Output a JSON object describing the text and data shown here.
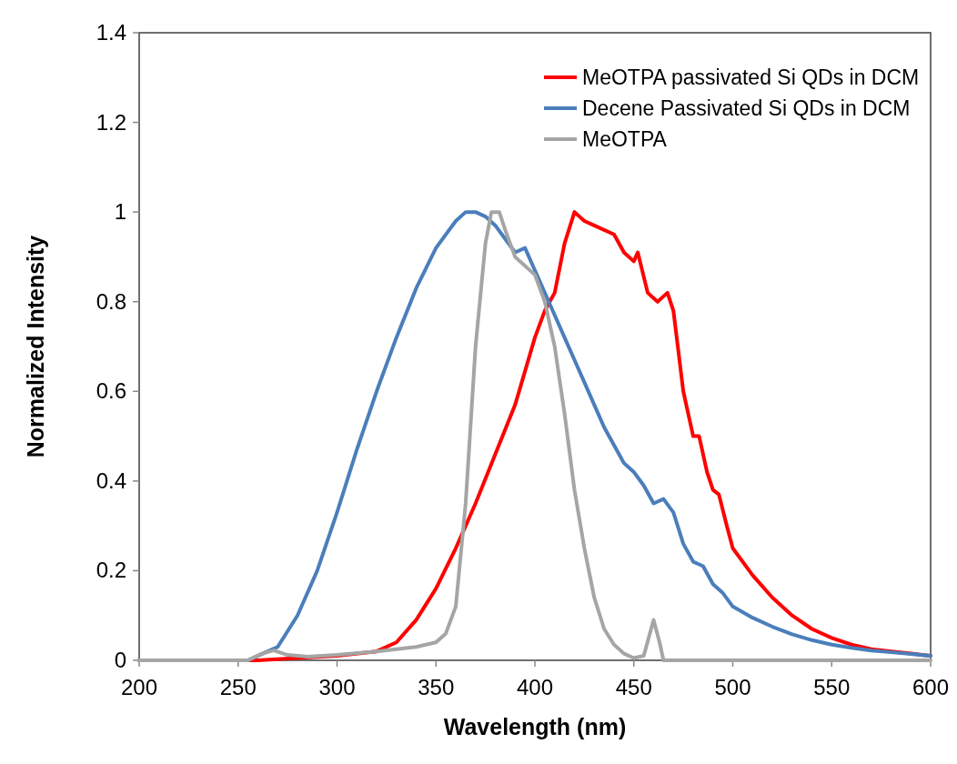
{
  "chart_data": {
    "type": "line",
    "xlabel": "Wavelength (nm)",
    "ylabel": "Normalized Intensity",
    "xlim": [
      200,
      600
    ],
    "ylim": [
      0,
      1.4
    ],
    "xticks": [
      200,
      250,
      300,
      350,
      400,
      450,
      500,
      550,
      600
    ],
    "yticks": [
      0,
      0.2,
      0.4,
      0.6,
      0.8,
      1,
      1.2,
      1.4
    ],
    "grid": false,
    "legend": "top right",
    "line_style": "solid",
    "series": [
      {
        "name": "MeOTPA passivated Si QDs in DCM",
        "color": "#ff0000",
        "x": [
          200,
          260,
          300,
          320,
          330,
          340,
          350,
          360,
          370,
          380,
          390,
          400,
          405,
          410,
          415,
          420,
          425,
          430,
          440,
          445,
          450,
          452,
          457,
          462,
          467,
          470,
          475,
          480,
          483,
          487,
          490,
          493,
          497,
          500,
          510,
          520,
          530,
          540,
          550,
          560,
          570,
          580,
          590,
          600
        ],
        "values": [
          0,
          0,
          0.01,
          0.02,
          0.04,
          0.09,
          0.16,
          0.25,
          0.35,
          0.46,
          0.57,
          0.72,
          0.78,
          0.82,
          0.93,
          1.0,
          0.98,
          0.97,
          0.95,
          0.91,
          0.89,
          0.91,
          0.82,
          0.8,
          0.82,
          0.78,
          0.6,
          0.5,
          0.5,
          0.42,
          0.38,
          0.37,
          0.3,
          0.25,
          0.19,
          0.14,
          0.1,
          0.07,
          0.05,
          0.035,
          0.025,
          0.02,
          0.015,
          0.01
        ]
      },
      {
        "name": "Decene Passivated Si QDs in DCM",
        "color": "#4a7ebb",
        "x": [
          200,
          255,
          265,
          270,
          280,
          290,
          300,
          310,
          320,
          330,
          340,
          350,
          360,
          365,
          370,
          375,
          380,
          385,
          390,
          395,
          400,
          405,
          410,
          415,
          420,
          425,
          430,
          435,
          440,
          445,
          450,
          455,
          460,
          465,
          470,
          475,
          480,
          485,
          490,
          495,
          500,
          510,
          520,
          530,
          540,
          550,
          560,
          570,
          580,
          590,
          600
        ],
        "values": [
          0,
          0,
          0.02,
          0.03,
          0.1,
          0.2,
          0.33,
          0.47,
          0.6,
          0.72,
          0.83,
          0.92,
          0.98,
          1.0,
          1.0,
          0.99,
          0.97,
          0.94,
          0.91,
          0.92,
          0.87,
          0.82,
          0.77,
          0.72,
          0.67,
          0.62,
          0.57,
          0.52,
          0.48,
          0.44,
          0.42,
          0.39,
          0.35,
          0.36,
          0.33,
          0.26,
          0.22,
          0.21,
          0.17,
          0.15,
          0.12,
          0.095,
          0.075,
          0.058,
          0.045,
          0.035,
          0.028,
          0.022,
          0.018,
          0.014,
          0.01
        ]
      },
      {
        "name": "MeOTPA",
        "color": "#a5a5a5",
        "x": [
          200,
          255,
          262,
          268,
          275,
          285,
          300,
          320,
          340,
          350,
          355,
          360,
          365,
          370,
          375,
          378,
          382,
          385,
          390,
          400,
          405,
          410,
          415,
          420,
          425,
          430,
          435,
          440,
          445,
          450,
          455,
          460,
          463,
          465,
          600
        ],
        "values": [
          0,
          0,
          0.015,
          0.022,
          0.012,
          0.008,
          0.012,
          0.02,
          0.03,
          0.04,
          0.06,
          0.12,
          0.35,
          0.7,
          0.93,
          1.0,
          1.0,
          0.96,
          0.9,
          0.86,
          0.8,
          0.7,
          0.55,
          0.38,
          0.25,
          0.14,
          0.07,
          0.035,
          0.015,
          0.005,
          0.01,
          0.09,
          0.04,
          0,
          0
        ]
      }
    ]
  }
}
